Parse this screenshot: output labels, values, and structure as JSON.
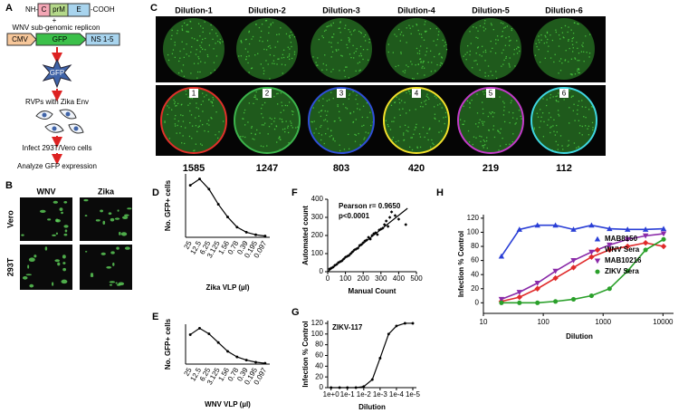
{
  "panel_a": {
    "label": "A",
    "construct": [
      "NH-",
      "C",
      "prM",
      "E",
      "-COOH"
    ],
    "plus": "+",
    "replicon": "WNV sub-genomic replicon",
    "cmv": "CMV",
    "gfp": "GFP",
    "ns": "NS 1-5",
    "star": "GFP",
    "rvp": "RVPs with Zika Env",
    "infect": "Infect 293T/Vero cells",
    "analyze": "Analyze GFP expression"
  },
  "panel_b": {
    "label": "B",
    "columns": [
      "WNV",
      "Zika"
    ],
    "rows": [
      "Vero",
      "293T"
    ]
  },
  "panel_c": {
    "label": "C",
    "dilutions": [
      "Dilution-1",
      "Dilution-2",
      "Dilution-3",
      "Dilution-4",
      "Dilution-5",
      "Dilution-6"
    ],
    "well_numbers": [
      "1",
      "2",
      "3",
      "4",
      "5",
      "6"
    ],
    "well_colors": [
      "#e0302a",
      "#3cb44b",
      "#2f4fd8",
      "#f2e02a",
      "#c33bc9",
      "#3fd6e0"
    ],
    "counts": [
      1585,
      1247,
      803,
      420,
      219,
      112
    ]
  },
  "chart_data": [
    {
      "type": "line",
      "label": "D",
      "ylabel": "No. GFP+ cells",
      "xlabel": "Zika VLP (µl)",
      "categories": [
        "25",
        "12.5",
        "6.25",
        "3.125",
        "1.56",
        "0.78",
        "0.39",
        "0.195",
        "0.097"
      ],
      "values": [
        2050,
        2300,
        1900,
        1300,
        800,
        400,
        200,
        100,
        50
      ],
      "ylim": [
        0,
        2500
      ],
      "color": "#000000"
    },
    {
      "type": "line",
      "label": "E",
      "ylabel": "No. GFP+ cells",
      "xlabel": "WNV VLP (µl)",
      "categories": [
        "25",
        "12.5",
        "6.25",
        "3.125",
        "1.56",
        "0.78",
        "0.39",
        "0.195",
        "0.097"
      ],
      "values": [
        1850,
        2250,
        1900,
        1350,
        800,
        450,
        250,
        120,
        50
      ],
      "ylim": [
        0,
        2500
      ],
      "color": "#000000"
    },
    {
      "type": "scatter",
      "label": "F",
      "xlabel": "Manual Count",
      "ylabel": "Automated count",
      "annotations": [
        "Pearson r= 0.9650",
        "p<0.0001"
      ],
      "xlim": [
        0,
        500
      ],
      "xticks": [
        0,
        100,
        200,
        300,
        400,
        500
      ],
      "ylim": [
        0,
        400
      ],
      "yticks": [
        0,
        100,
        200,
        300,
        400
      ],
      "series": [
        {
          "color": "#000000",
          "marker": "diamond",
          "x": [
            10,
            20,
            30,
            40,
            50,
            60,
            70,
            80,
            90,
            100,
            110,
            120,
            130,
            140,
            150,
            160,
            170,
            180,
            190,
            200,
            210,
            220,
            230,
            240,
            250,
            260,
            270,
            280,
            290,
            300,
            310,
            320,
            330,
            340,
            350,
            360,
            380,
            400,
            440
          ],
          "values": [
            15,
            20,
            25,
            35,
            40,
            50,
            55,
            60,
            70,
            80,
            85,
            90,
            100,
            110,
            120,
            125,
            130,
            145,
            150,
            160,
            170,
            175,
            190,
            180,
            200,
            210,
            215,
            205,
            230,
            235,
            240,
            260,
            280,
            250,
            300,
            330,
            310,
            290,
            260
          ]
        },
        {
          "color": "#000000",
          "marker": "none",
          "x": [
            0,
            450
          ],
          "values": [
            0,
            350
          ]
        }
      ]
    },
    {
      "type": "line",
      "label": "G",
      "title": "ZIKV-117",
      "ylabel": "Infection % Control",
      "xlabel": "Dilution",
      "xlog": true,
      "x": [
        1,
        0.3,
        0.1,
        0.03,
        0.01,
        0.003,
        0.001,
        0.0003,
        0.0001,
        3e-05,
        1e-05
      ],
      "values": [
        0,
        0,
        0,
        0,
        2,
        15,
        55,
        100,
        115,
        120,
        120
      ],
      "color": "#000000",
      "xlim": [
        1.6,
        6e-06
      ],
      "xticks": [
        {
          "value": 1,
          "label": "1e+0"
        },
        {
          "value": 0.1,
          "label": "1e-1"
        },
        {
          "value": 0.01,
          "label": "1e-2"
        },
        {
          "value": 0.001,
          "label": "1e-3"
        },
        {
          "value": 0.0001,
          "label": "1e-4"
        },
        {
          "value": 1e-05,
          "label": "1e-5"
        }
      ],
      "ylim": [
        0,
        125
      ],
      "yticks": [
        0,
        20,
        40,
        60,
        80,
        100,
        120
      ]
    },
    {
      "type": "line",
      "label": "H",
      "ylabel": "Infection % Control",
      "xlabel": "Dilution",
      "xlog": true,
      "legend": "lower right",
      "x": [
        20,
        40,
        80,
        160,
        320,
        640,
        1280,
        2560,
        5120,
        10240
      ],
      "xlim": [
        10,
        15000
      ],
      "xticks": [
        10,
        100,
        1000,
        10000
      ],
      "ylim": [
        -15,
        125
      ],
      "yticks": [
        0,
        20,
        40,
        60,
        80,
        100,
        120
      ],
      "series": [
        {
          "name": "MAB8150",
          "color": "#2a3fd6",
          "marker": "triangle-up",
          "values": [
            66,
            104,
            110,
            110,
            104,
            110,
            105,
            104,
            104,
            105
          ]
        },
        {
          "name": "WNV Sera",
          "color": "#e02a2a",
          "marker": "diamond",
          "values": [
            2,
            8,
            20,
            35,
            50,
            65,
            75,
            80,
            85,
            80
          ]
        },
        {
          "name": "MAB10216",
          "color": "#8a2aa8",
          "marker": "triangle-down",
          "values": [
            5,
            15,
            28,
            45,
            60,
            72,
            82,
            90,
            95,
            98
          ]
        },
        {
          "name": "ZIKV Sera",
          "color": "#2aa02a",
          "marker": "circle",
          "values": [
            0,
            0,
            0,
            2,
            5,
            10,
            20,
            45,
            75,
            90
          ]
        }
      ]
    }
  ]
}
